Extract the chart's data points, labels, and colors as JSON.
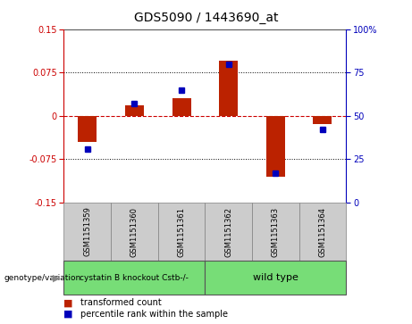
{
  "title": "GDS5090 / 1443690_at",
  "samples": [
    "GSM1151359",
    "GSM1151360",
    "GSM1151361",
    "GSM1151362",
    "GSM1151363",
    "GSM1151364"
  ],
  "transformed_count": [
    -0.045,
    0.018,
    0.03,
    0.095,
    -0.105,
    -0.015
  ],
  "percentile_rank": [
    31,
    57,
    65,
    80,
    17,
    42
  ],
  "group1_label": "cystatin B knockout Cstb-/-",
  "group2_label": "wild type",
  "group_color": "#77DD77",
  "ylim_left": [
    -0.15,
    0.15
  ],
  "ylim_right": [
    0,
    100
  ],
  "yticks_left": [
    -0.15,
    -0.075,
    0,
    0.075,
    0.15
  ],
  "yticks_right": [
    0,
    25,
    50,
    75,
    100
  ],
  "bar_color": "#BB2200",
  "dot_color": "#0000BB",
  "hline_color": "#CC0000",
  "sample_box_color": "#CCCCCC",
  "title_fontsize": 10,
  "tick_fontsize": 7,
  "label_fontsize": 7,
  "sample_fontsize": 6,
  "legend_fontsize": 7
}
